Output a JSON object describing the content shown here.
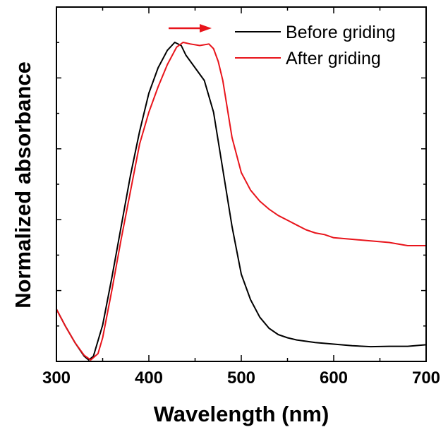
{
  "chart_data": {
    "type": "line",
    "title": "",
    "xlabel": "Wavelength (nm)",
    "ylabel": "Normalized absorbance",
    "xlim": [
      300,
      700
    ],
    "ylim": [
      0,
      1
    ],
    "x_ticks": [
      "300",
      "400",
      "500",
      "600",
      "700"
    ],
    "y_ticks_labeled": false,
    "grid": false,
    "legend_position": "top-right",
    "annotation": "red arrow pointing right (red shift)",
    "series": [
      {
        "name": "Before griding",
        "color": "#000000",
        "points": [
          [
            300,
            0.16
          ],
          [
            310,
            0.105
          ],
          [
            320,
            0.055
          ],
          [
            330,
            0.012
          ],
          [
            335,
            0.0
          ],
          [
            340,
            0.012
          ],
          [
            350,
            0.11
          ],
          [
            360,
            0.26
          ],
          [
            370,
            0.42
          ],
          [
            380,
            0.58
          ],
          [
            390,
            0.72
          ],
          [
            400,
            0.84
          ],
          [
            410,
            0.92
          ],
          [
            420,
            0.975
          ],
          [
            428,
            1.0
          ],
          [
            435,
            0.99
          ],
          [
            440,
            0.96
          ],
          [
            450,
            0.92
          ],
          [
            460,
            0.88
          ],
          [
            470,
            0.78
          ],
          [
            480,
            0.6
          ],
          [
            490,
            0.42
          ],
          [
            500,
            0.27
          ],
          [
            510,
            0.19
          ],
          [
            520,
            0.135
          ],
          [
            530,
            0.1
          ],
          [
            540,
            0.08
          ],
          [
            550,
            0.07
          ],
          [
            560,
            0.063
          ],
          [
            580,
            0.055
          ],
          [
            600,
            0.05
          ],
          [
            620,
            0.045
          ],
          [
            640,
            0.042
          ],
          [
            660,
            0.043
          ],
          [
            680,
            0.043
          ],
          [
            700,
            0.048
          ]
        ]
      },
      {
        "name": "After griding",
        "color": "#e8141b",
        "points": [
          [
            300,
            0.16
          ],
          [
            310,
            0.105
          ],
          [
            320,
            0.055
          ],
          [
            330,
            0.015
          ],
          [
            337,
            0.0
          ],
          [
            345,
            0.02
          ],
          [
            350,
            0.07
          ],
          [
            360,
            0.22
          ],
          [
            370,
            0.38
          ],
          [
            380,
            0.53
          ],
          [
            390,
            0.68
          ],
          [
            400,
            0.78
          ],
          [
            410,
            0.86
          ],
          [
            420,
            0.93
          ],
          [
            430,
            0.985
          ],
          [
            437,
            1.0
          ],
          [
            445,
            0.995
          ],
          [
            455,
            0.99
          ],
          [
            465,
            0.995
          ],
          [
            470,
            0.98
          ],
          [
            475,
            0.94
          ],
          [
            480,
            0.88
          ],
          [
            490,
            0.7
          ],
          [
            500,
            0.59
          ],
          [
            510,
            0.535
          ],
          [
            520,
            0.5
          ],
          [
            530,
            0.475
          ],
          [
            540,
            0.455
          ],
          [
            550,
            0.44
          ],
          [
            560,
            0.425
          ],
          [
            570,
            0.41
          ],
          [
            580,
            0.4
          ],
          [
            590,
            0.395
          ],
          [
            600,
            0.385
          ],
          [
            620,
            0.38
          ],
          [
            640,
            0.375
          ],
          [
            660,
            0.37
          ],
          [
            680,
            0.36
          ],
          [
            700,
            0.36
          ]
        ]
      }
    ]
  }
}
